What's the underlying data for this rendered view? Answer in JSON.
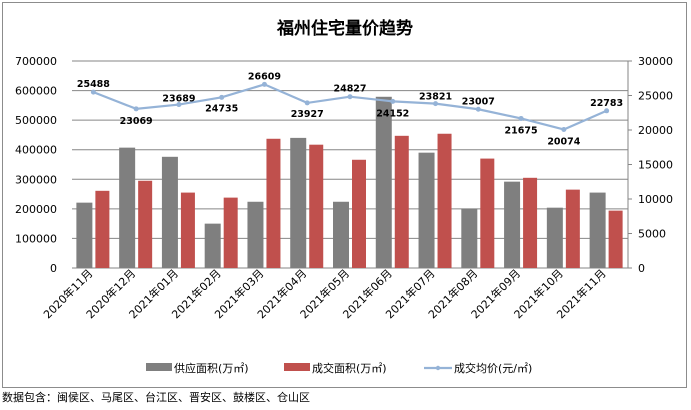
{
  "chart_data": {
    "type": "bar+line",
    "title": "福州住宅量价趋势",
    "categories": [
      "2020年11月",
      "2020年12月",
      "2021年01月",
      "2021年02月",
      "2021年03月",
      "2021年04月",
      "2021年05月",
      "2021年06月",
      "2021年07月",
      "2021年08月",
      "2021年09月",
      "2021年10月",
      "2021年11月"
    ],
    "series": [
      {
        "name": "供应面积(万㎡)",
        "type": "bar",
        "axis": "left",
        "color": "#7f7f7f",
        "values": [
          221000,
          407000,
          376000,
          150000,
          224000,
          440000,
          224000,
          579000,
          390000,
          201000,
          292000,
          204000,
          255000
        ]
      },
      {
        "name": "成交面积(万㎡)",
        "type": "bar",
        "axis": "left",
        "color": "#c0504d",
        "values": [
          261000,
          295000,
          255000,
          238000,
          437000,
          417000,
          366000,
          447000,
          454000,
          370000,
          305000,
          265000,
          194000
        ]
      },
      {
        "name": "成交均价(元/㎡)",
        "type": "line",
        "axis": "right",
        "color": "#95b3d7",
        "values": [
          25488,
          23069,
          23689,
          24735,
          26609,
          23927,
          24827,
          24152,
          23821,
          23007,
          21675,
          20074,
          22783
        ],
        "data_labels": true
      }
    ],
    "y_left": {
      "range": [
        0,
        700000
      ],
      "ticks": [
        "0",
        "100000",
        "200000",
        "300000",
        "400000",
        "500000",
        "600000",
        "700000"
      ]
    },
    "y_right": {
      "range": [
        0,
        30000
      ],
      "ticks": [
        "0",
        "5000",
        "10000",
        "15000",
        "20000",
        "25000",
        "30000"
      ]
    },
    "grid": true,
    "legend_position": "bottom"
  },
  "footer": "数据包含：闽侯区、马尾区、台江区、晋安区、鼓楼区、仓山区"
}
